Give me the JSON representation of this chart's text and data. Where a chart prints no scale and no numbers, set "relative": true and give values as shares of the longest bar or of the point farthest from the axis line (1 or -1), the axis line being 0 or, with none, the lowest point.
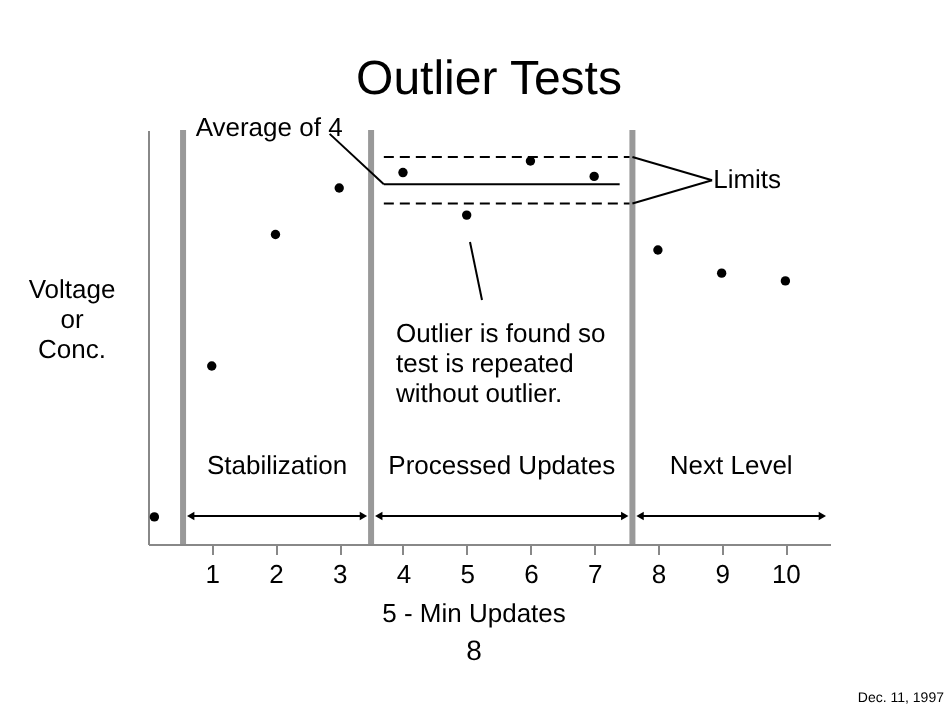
{
  "chart_data": {
    "type": "scatter",
    "title": "Outlier Tests",
    "xlabel": "5 - Min Updates",
    "ylabel": "Voltage or Conc.",
    "relative": true,
    "xlim": [
      0,
      10.7
    ],
    "xticks": [
      1,
      2,
      3,
      4,
      5,
      6,
      7,
      8,
      9,
      10
    ],
    "grid": false,
    "series": [
      {
        "color": "#000000",
        "marker": "circle",
        "x": [
          0.1,
          1,
          2,
          3,
          4,
          5,
          6,
          7,
          8,
          9,
          10
        ],
        "values": [
          0.07,
          0.46,
          0.8,
          0.92,
          0.96,
          0.85,
          0.99,
          0.95,
          0.76,
          0.7,
          0.68
        ]
      },
      {
        "type": "line",
        "color": "#000000",
        "line_style": "solid",
        "x": [
          3.7,
          7.4
        ],
        "values": [
          0.93,
          0.93
        ]
      },
      {
        "type": "line",
        "color": "#000000",
        "line_style": "dashed",
        "x": [
          3.7,
          7.6
        ],
        "values": [
          1.0,
          1.0
        ]
      },
      {
        "type": "line",
        "color": "#000000",
        "line_style": "dashed",
        "x": [
          3.7,
          7.6
        ],
        "values": [
          0.88,
          0.88
        ]
      }
    ],
    "ref_lines": [
      {
        "axis": "x",
        "value": 0.55,
        "color": "#999999"
      },
      {
        "axis": "x",
        "value": 3.5,
        "color": "#999999"
      },
      {
        "axis": "x",
        "value": 7.6,
        "color": "#999999"
      }
    ],
    "annotations": [
      {
        "text": "Average of 4",
        "x": 3.7,
        "y": 0.93
      },
      {
        "text": "Limits",
        "x": 7.6,
        "y": 1.0
      },
      "Stabilization",
      "Processed Updates",
      "Next Level",
      "8",
      "Dec. 11, 1997",
      "Outlier is found so test is repeated without outlier."
    ]
  }
}
